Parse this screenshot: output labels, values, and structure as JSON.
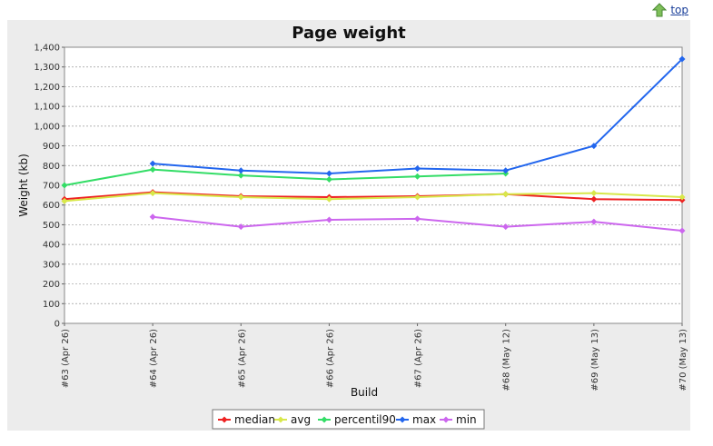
{
  "nav": {
    "top_label": "top"
  },
  "colors": {
    "panel_bg": "#ececec",
    "plot_bg": "#ffffff",
    "grid": "#999999",
    "median": "#ee2222",
    "avg": "#d8e84a",
    "percentil90": "#33dd66",
    "max": "#2266ee",
    "min": "#cc66ee"
  },
  "chart_data": {
    "type": "line",
    "title": "Page weight",
    "xlabel": "Build",
    "ylabel": "Weight (kb)",
    "categories": [
      "#63 (Apr 26)",
      "#64 (Apr 26)",
      "#65 (Apr 26)",
      "#66 (Apr 26)",
      "#67 (Apr 26)",
      "#68 (May 12)",
      "#69 (May 13)",
      "#70 (May 13)"
    ],
    "ylim": [
      0,
      1400
    ],
    "yticks": [
      0,
      100,
      200,
      300,
      400,
      500,
      600,
      700,
      800,
      900,
      1000,
      1100,
      1200,
      1300,
      1400
    ],
    "ytick_labels": [
      "0",
      "100",
      "200",
      "300",
      "400",
      "500",
      "600",
      "700",
      "800",
      "900",
      "1,000",
      "1,100",
      "1,200",
      "1,300",
      "1,400"
    ],
    "grid": true,
    "legend_position": "bottom",
    "series": [
      {
        "name": "median",
        "color": "#ee2222",
        "values": [
          630,
          665,
          645,
          640,
          645,
          655,
          630,
          625
        ]
      },
      {
        "name": "avg",
        "color": "#d8e84a",
        "values": [
          620,
          660,
          640,
          630,
          640,
          655,
          660,
          640
        ]
      },
      {
        "name": "percentil90",
        "color": "#33dd66",
        "values": [
          700,
          780,
          750,
          730,
          745,
          760,
          null,
          null
        ]
      },
      {
        "name": "max",
        "color": "#2266ee",
        "values": [
          null,
          810,
          775,
          760,
          785,
          775,
          900,
          1340
        ]
      },
      {
        "name": "min",
        "color": "#cc66ee",
        "values": [
          null,
          540,
          490,
          525,
          530,
          490,
          515,
          470
        ]
      }
    ]
  }
}
